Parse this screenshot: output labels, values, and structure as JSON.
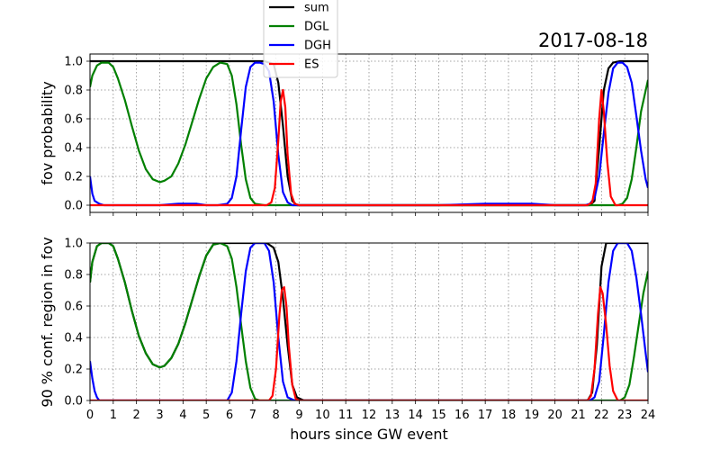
{
  "chart_data": [
    {
      "type": "line",
      "title": "2017-08-18",
      "ylabel": "fov probability",
      "xlabel": "",
      "xlim": [
        0,
        24
      ],
      "ylim": [
        -0.05,
        1.05
      ],
      "yticks": [
        "0.0",
        "0.2",
        "0.4",
        "0.6",
        "0.8",
        "1.0"
      ],
      "grid": true,
      "legend": "top-center, above plot",
      "series": [
        {
          "name": "sum",
          "color": "#000000",
          "x": [
            0,
            0.1,
            0.3,
            0.6,
            0.9,
            1.2,
            1.5,
            1.8,
            2.1,
            2.4,
            2.7,
            3.0,
            3.2,
            3.5,
            3.8,
            4.1,
            4.4,
            4.7,
            5.0,
            5.3,
            5.6,
            5.9,
            6.2,
            6.5,
            7.0,
            7.5,
            7.9,
            8.1,
            8.3,
            8.5,
            8.7,
            8.9,
            9.5,
            12,
            15,
            17,
            18,
            19,
            20,
            21,
            21.5,
            21.7,
            21.9,
            22.1,
            22.3,
            22.5,
            22.8,
            23.2,
            23.6,
            24
          ],
          "y": [
            1.0,
            1.0,
            1.0,
            1.0,
            1.0,
            1.0,
            1.0,
            1.0,
            1.0,
            1.0,
            1.0,
            1.0,
            1.0,
            1.0,
            1.0,
            1.0,
            1.0,
            1.0,
            1.0,
            1.0,
            1.0,
            1.0,
            1.0,
            1.0,
            1.0,
            1.0,
            0.98,
            0.85,
            0.55,
            0.2,
            0.03,
            0.0,
            0.0,
            0.0,
            0.0,
            0.0,
            0.0,
            0.0,
            0.0,
            0.0,
            0.0,
            0.03,
            0.4,
            0.8,
            0.95,
            0.99,
            1.0,
            1.0,
            1.0,
            1.0
          ]
        },
        {
          "name": "DGL",
          "color": "#008000",
          "x": [
            0,
            0.1,
            0.3,
            0.5,
            0.8,
            1.0,
            1.2,
            1.5,
            1.8,
            2.1,
            2.4,
            2.7,
            3.0,
            3.2,
            3.5,
            3.8,
            4.1,
            4.4,
            4.7,
            5.0,
            5.3,
            5.6,
            5.9,
            6.1,
            6.3,
            6.5,
            6.7,
            6.9,
            7.1,
            7.5,
            8,
            10,
            15,
            20,
            22.5,
            22.7,
            22.9,
            23.1,
            23.3,
            23.5,
            23.7,
            24
          ],
          "y": [
            0.82,
            0.9,
            0.97,
            0.99,
            0.99,
            0.96,
            0.88,
            0.73,
            0.55,
            0.38,
            0.25,
            0.18,
            0.16,
            0.17,
            0.2,
            0.29,
            0.42,
            0.58,
            0.74,
            0.88,
            0.96,
            0.99,
            0.98,
            0.9,
            0.7,
            0.42,
            0.18,
            0.05,
            0.01,
            0.0,
            0.0,
            0.0,
            0.0,
            0.0,
            0.0,
            0.0,
            0.01,
            0.05,
            0.18,
            0.4,
            0.65,
            0.87
          ]
        },
        {
          "name": "DGH",
          "color": "#0000ff",
          "x": [
            0,
            0.1,
            0.2,
            0.4,
            0.6,
            1,
            2,
            3,
            3.8,
            4.2,
            4.6,
            5,
            5.5,
            5.9,
            6.1,
            6.3,
            6.5,
            6.7,
            6.9,
            7.1,
            7.3,
            7.5,
            7.7,
            7.9,
            8.1,
            8.3,
            8.5,
            8.7,
            9,
            12,
            15,
            17,
            18,
            19,
            20,
            21,
            21.3,
            21.5,
            21.7,
            21.9,
            22.1,
            22.3,
            22.5,
            22.7,
            22.9,
            23.1,
            23.3,
            23.5,
            23.7,
            23.9,
            24
          ],
          "y": [
            0.2,
            0.08,
            0.03,
            0.01,
            0.0,
            0.0,
            0.0,
            0.0,
            0.01,
            0.01,
            0.01,
            0.0,
            0.0,
            0.01,
            0.05,
            0.2,
            0.52,
            0.82,
            0.96,
            0.99,
            0.99,
            0.98,
            0.93,
            0.72,
            0.35,
            0.09,
            0.02,
            0.0,
            0.0,
            0.0,
            0.0,
            0.01,
            0.01,
            0.01,
            0.0,
            0.0,
            0.0,
            0.01,
            0.05,
            0.2,
            0.5,
            0.78,
            0.95,
            0.99,
            0.99,
            0.96,
            0.85,
            0.62,
            0.38,
            0.18,
            0.12
          ]
        },
        {
          "name": "ES",
          "color": "#ff0000",
          "x": [
            0,
            7.6,
            7.8,
            7.95,
            8.1,
            8.2,
            8.3,
            8.4,
            8.5,
            8.65,
            8.8,
            9.0,
            21.4,
            21.6,
            21.75,
            21.9,
            22.0,
            22.1,
            22.25,
            22.4,
            22.6,
            24
          ],
          "y": [
            0.0,
            0.0,
            0.02,
            0.12,
            0.45,
            0.72,
            0.8,
            0.68,
            0.35,
            0.08,
            0.01,
            0.0,
            0.0,
            0.02,
            0.15,
            0.6,
            0.8,
            0.65,
            0.3,
            0.06,
            0.0,
            0.0
          ]
        }
      ]
    },
    {
      "type": "line",
      "title": "",
      "ylabel": "90 % conf. region in fov",
      "xlabel": "hours since GW event",
      "xlim": [
        0,
        24
      ],
      "ylim": [
        0,
        1.0
      ],
      "xticks": [
        "0",
        "1",
        "2",
        "3",
        "4",
        "5",
        "6",
        "7",
        "8",
        "9",
        "10",
        "11",
        "12",
        "13",
        "14",
        "15",
        "16",
        "17",
        "18",
        "19",
        "20",
        "21",
        "22",
        "23",
        "24"
      ],
      "yticks": [
        "0.0",
        "0.2",
        "0.4",
        "0.6",
        "0.8",
        "1.0"
      ],
      "grid": true,
      "series": [
        {
          "name": "sum",
          "color": "#000000",
          "x": [
            0,
            0.1,
            0.3,
            0.5,
            0.8,
            1.0,
            1.2,
            1.5,
            1.8,
            2.1,
            2.4,
            2.7,
            3.0,
            3.2,
            3.5,
            3.8,
            4.1,
            4.4,
            4.7,
            5.0,
            5.3,
            5.6,
            5.9,
            6.2,
            6.5,
            6.8,
            7.0,
            7.3,
            7.6,
            7.9,
            8.1,
            8.3,
            8.5,
            8.7,
            8.9,
            9.2,
            12,
            15,
            18,
            21,
            21.4,
            21.6,
            21.8,
            22.0,
            22.2,
            22.4,
            22.6,
            22.8,
            23.0,
            24
          ],
          "y": [
            0.75,
            0.88,
            0.98,
            1.0,
            1.0,
            0.98,
            0.9,
            0.75,
            0.57,
            0.41,
            0.3,
            0.23,
            0.21,
            0.22,
            0.27,
            0.36,
            0.49,
            0.64,
            0.79,
            0.92,
            0.99,
            1.0,
            1.0,
            1.0,
            1.0,
            1.0,
            1.0,
            1.0,
            1.0,
            0.97,
            0.88,
            0.65,
            0.35,
            0.1,
            0.02,
            0.0,
            0.0,
            0.0,
            0.0,
            0.0,
            0.0,
            0.05,
            0.35,
            0.85,
            1.0,
            1.0,
            1.0,
            1.0,
            1.0,
            1.0
          ]
        },
        {
          "name": "DGL",
          "color": "#008000",
          "x": [
            0,
            0.1,
            0.3,
            0.5,
            0.8,
            1.0,
            1.2,
            1.5,
            1.8,
            2.1,
            2.4,
            2.7,
            3.0,
            3.2,
            3.5,
            3.8,
            4.1,
            4.4,
            4.7,
            5.0,
            5.3,
            5.6,
            5.9,
            6.1,
            6.3,
            6.5,
            6.7,
            6.9,
            7.1,
            7.3,
            7.5,
            8,
            10,
            15,
            20,
            22.5,
            22.8,
            23.0,
            23.2,
            23.4,
            23.6,
            23.8,
            24
          ],
          "y": [
            0.75,
            0.88,
            0.98,
            1.0,
            1.0,
            0.98,
            0.9,
            0.75,
            0.57,
            0.41,
            0.3,
            0.23,
            0.21,
            0.22,
            0.27,
            0.36,
            0.49,
            0.64,
            0.79,
            0.92,
            0.99,
            1.0,
            0.98,
            0.9,
            0.72,
            0.48,
            0.25,
            0.08,
            0.01,
            0.0,
            0.0,
            0.0,
            0.0,
            0.0,
            0.0,
            0.0,
            0.0,
            0.02,
            0.1,
            0.28,
            0.48,
            0.68,
            0.82
          ]
        },
        {
          "name": "DGH",
          "color": "#0000ff",
          "x": [
            0,
            0.1,
            0.2,
            0.3,
            0.4,
            0.5,
            1,
            3,
            5,
            5.9,
            6.1,
            6.3,
            6.5,
            6.7,
            6.9,
            7.1,
            7.3,
            7.5,
            7.7,
            7.9,
            8.1,
            8.3,
            8.5,
            8.8,
            9,
            12,
            15,
            18,
            21,
            21.3,
            21.5,
            21.7,
            21.9,
            22.1,
            22.3,
            22.5,
            22.7,
            22.9,
            23.1,
            23.3,
            23.5,
            23.7,
            23.9,
            24
          ],
          "y": [
            0.25,
            0.14,
            0.06,
            0.02,
            0.0,
            0.0,
            0.0,
            0.0,
            0.0,
            0.0,
            0.05,
            0.25,
            0.55,
            0.82,
            0.97,
            1.0,
            1.0,
            1.0,
            0.95,
            0.75,
            0.4,
            0.12,
            0.02,
            0.0,
            0.0,
            0.0,
            0.0,
            0.0,
            0.0,
            0.0,
            0.0,
            0.02,
            0.12,
            0.42,
            0.75,
            0.95,
            1.0,
            1.0,
            1.0,
            0.95,
            0.78,
            0.55,
            0.3,
            0.18
          ]
        },
        {
          "name": "ES",
          "color": "#ff0000",
          "x": [
            0,
            7.7,
            7.85,
            8.0,
            8.15,
            8.25,
            8.35,
            8.45,
            8.55,
            8.7,
            8.85,
            9.0,
            21.4,
            21.55,
            21.7,
            21.85,
            21.95,
            22.05,
            22.2,
            22.35,
            22.5,
            22.7,
            24
          ],
          "y": [
            0.0,
            0.0,
            0.03,
            0.2,
            0.55,
            0.7,
            0.72,
            0.6,
            0.35,
            0.1,
            0.01,
            0.0,
            0.0,
            0.03,
            0.2,
            0.55,
            0.72,
            0.68,
            0.48,
            0.22,
            0.06,
            0.0,
            0.0
          ]
        }
      ]
    }
  ]
}
